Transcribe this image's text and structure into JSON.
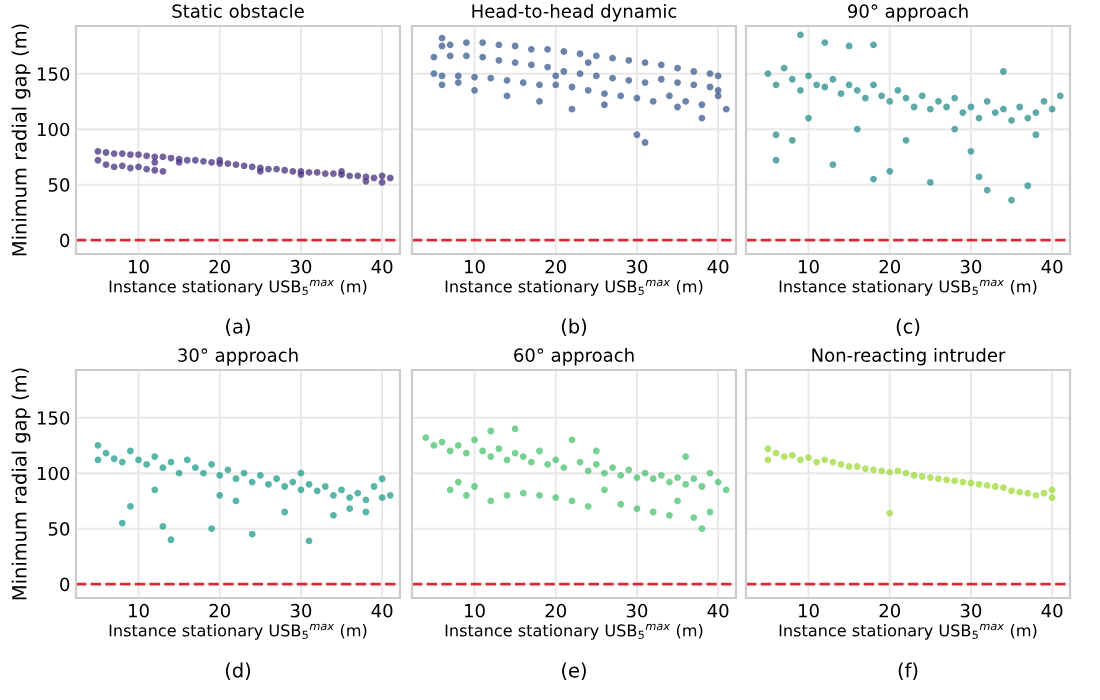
{
  "chart_data": [
    {
      "type": "scatter",
      "title": "Static obstacle",
      "xlabel": "Instance stationary USB$_{5}$$^{max}$ (m)",
      "ylabel": "Minimum radial gap (m)",
      "color": "#46307e",
      "marker": "circle",
      "grid": true,
      "xlim": [
        2.3,
        42.2
      ],
      "ylim": [
        -12.5,
        193
      ],
      "xticks": [
        10,
        20,
        30,
        40
      ],
      "yticks": [
        0,
        50,
        100,
        150
      ],
      "ref_lines": [
        {
          "axis": "y",
          "value": 0,
          "color": "#d62a3a",
          "line_style": "dashed"
        }
      ],
      "annotations": [
        "(a)"
      ],
      "x": [
        5,
        6,
        7,
        8,
        9,
        10,
        11,
        12,
        13,
        14,
        15,
        16,
        17,
        18,
        19,
        20,
        21,
        22,
        23,
        24,
        25,
        26,
        27,
        28,
        29,
        30,
        31,
        32,
        33,
        34,
        35,
        36,
        37,
        38,
        39,
        40,
        41,
        5,
        6,
        7,
        8,
        9,
        10,
        11,
        12,
        13,
        15,
        20,
        25,
        30,
        35,
        38,
        40,
        12
      ],
      "values": [
        80,
        79,
        78,
        78,
        77,
        77,
        76,
        75,
        75,
        74,
        73,
        72,
        72,
        71,
        70,
        69,
        69,
        68,
        67,
        66,
        65,
        64,
        64,
        63,
        62,
        62,
        61,
        61,
        60,
        60,
        59,
        58,
        58,
        57,
        56,
        58,
        56,
        72,
        68,
        66,
        67,
        65,
        66,
        64,
        63,
        62,
        70,
        72,
        62,
        59,
        62,
        53,
        52,
        70
      ]
    },
    {
      "type": "scatter",
      "title": "Head-to-head dynamic",
      "xlabel": "Instance stationary USB$_{5}$$^{max}$ (m)",
      "color": "#3b5a8f",
      "marker": "circle",
      "grid": true,
      "tick_labels": "x",
      "xlim": [
        2.3,
        42.2
      ],
      "ylim": [
        -12.5,
        193
      ],
      "xticks": [
        10,
        20,
        30,
        40
      ],
      "yticks": [
        0,
        50,
        100,
        150
      ],
      "ref_lines": [
        {
          "axis": "y",
          "value": 0,
          "color": "#d62a3a",
          "line_style": "dashed"
        }
      ],
      "annotations": [
        "(b)"
      ],
      "x": [
        5,
        6,
        7,
        9,
        11,
        13,
        15,
        17,
        19,
        21,
        23,
        25,
        27,
        29,
        31,
        33,
        35,
        37,
        39,
        40,
        5,
        7,
        9,
        11,
        13,
        15,
        17,
        19,
        21,
        23,
        25,
        27,
        29,
        31,
        33,
        35,
        37,
        39,
        40,
        6,
        8,
        10,
        12,
        14,
        16,
        18,
        20,
        22,
        24,
        26,
        28,
        30,
        32,
        34,
        36,
        38,
        40,
        41,
        6,
        8,
        10,
        14,
        18,
        22,
        26,
        30,
        31,
        35,
        38,
        6,
        20,
        24
      ],
      "values": [
        165,
        175,
        176,
        178,
        178,
        176,
        175,
        172,
        172,
        170,
        168,
        166,
        164,
        162,
        160,
        158,
        155,
        152,
        150,
        148,
        150,
        166,
        166,
        165,
        162,
        160,
        158,
        156,
        152,
        150,
        148,
        146,
        144,
        142,
        145,
        142,
        140,
        138,
        135,
        148,
        148,
        147,
        146,
        144,
        142,
        140,
        140,
        138,
        135,
        132,
        130,
        128,
        125,
        130,
        125,
        122,
        130,
        118,
        140,
        142,
        135,
        130,
        125,
        118,
        122,
        95,
        88,
        120,
        110,
        182,
        148,
        160
      ]
    },
    {
      "type": "scatter",
      "title": "90° approach",
      "xlabel": "Instance stationary USB$_{5}$$^{max}$ (m)",
      "color": "#2a8c8c",
      "marker": "circle",
      "grid": true,
      "tick_labels": "x",
      "xlim": [
        2.3,
        42.2
      ],
      "ylim": [
        -12.5,
        193
      ],
      "xticks": [
        10,
        20,
        30,
        40
      ],
      "yticks": [
        0,
        50,
        100,
        150
      ],
      "ref_lines": [
        {
          "axis": "y",
          "value": 0,
          "color": "#d62a3a",
          "line_style": "dashed"
        }
      ],
      "annotations": [
        "(c)"
      ],
      "x": [
        5,
        6,
        7,
        8,
        9,
        10,
        11,
        12,
        13,
        14,
        15,
        16,
        17,
        18,
        19,
        20,
        21,
        22,
        23,
        24,
        25,
        26,
        27,
        28,
        29,
        30,
        31,
        32,
        33,
        34,
        35,
        36,
        37,
        38,
        39,
        40,
        41,
        9,
        12,
        15,
        18,
        6,
        8,
        6,
        13,
        18,
        20,
        25,
        31,
        32,
        35,
        37,
        34,
        28,
        22,
        10,
        16,
        30,
        38
      ],
      "values": [
        150,
        140,
        155,
        145,
        135,
        148,
        140,
        138,
        145,
        132,
        140,
        135,
        128,
        140,
        130,
        125,
        135,
        128,
        120,
        130,
        118,
        125,
        120,
        128,
        115,
        120,
        110,
        125,
        115,
        118,
        108,
        120,
        110,
        115,
        125,
        118,
        130,
        185,
        178,
        175,
        176,
        95,
        90,
        72,
        68,
        55,
        62,
        52,
        57,
        45,
        36,
        49,
        152,
        100,
        90,
        110,
        100,
        80,
        95
      ]
    },
    {
      "type": "scatter",
      "title": "30° approach",
      "xlabel": "Instance stationary USB$_{5}$$^{max}$ (m)",
      "ylabel": "Minimum radial gap (m)",
      "color": "#1f9e89",
      "marker": "circle",
      "grid": true,
      "xlim": [
        2.3,
        42.2
      ],
      "ylim": [
        -12.5,
        193
      ],
      "xticks": [
        10,
        20,
        30,
        40
      ],
      "yticks": [
        0,
        50,
        100,
        150
      ],
      "ref_lines": [
        {
          "axis": "y",
          "value": 0,
          "color": "#d62a3a",
          "line_style": "dashed"
        }
      ],
      "annotations": [
        "(d)"
      ],
      "x": [
        5,
        5,
        6,
        7,
        8,
        9,
        10,
        11,
        12,
        13,
        14,
        15,
        16,
        17,
        18,
        19,
        20,
        21,
        22,
        23,
        24,
        25,
        26,
        27,
        28,
        29,
        30,
        31,
        32,
        33,
        34,
        35,
        36,
        37,
        38,
        39,
        40,
        41,
        8,
        9,
        13,
        14,
        12,
        19,
        20,
        24,
        22,
        28,
        31,
        34,
        36,
        38,
        40,
        30
      ],
      "values": [
        125,
        112,
        118,
        113,
        110,
        120,
        112,
        108,
        115,
        105,
        110,
        100,
        112,
        105,
        100,
        108,
        98,
        103,
        95,
        100,
        92,
        98,
        90,
        95,
        88,
        92,
        85,
        90,
        84,
        88,
        80,
        85,
        78,
        82,
        76,
        88,
        78,
        80,
        55,
        70,
        52,
        40,
        85,
        50,
        80,
        45,
        75,
        65,
        39,
        62,
        68,
        65,
        95,
        100
      ]
    },
    {
      "type": "scatter",
      "title": "60° approach",
      "xlabel": "Instance stationary USB$_{5}$$^{max}$ (m)",
      "color": "#48c16e",
      "marker": "circle",
      "grid": true,
      "tick_labels": "x",
      "xlim": [
        2.3,
        42.2
      ],
      "ylim": [
        -12.5,
        193
      ],
      "xticks": [
        10,
        20,
        30,
        40
      ],
      "yticks": [
        0,
        50,
        100,
        150
      ],
      "ref_lines": [
        {
          "axis": "y",
          "value": 0,
          "color": "#d62a3a",
          "line_style": "dashed"
        }
      ],
      "annotations": [
        "(e)"
      ],
      "x": [
        4,
        5,
        6,
        7,
        8,
        9,
        10,
        11,
        12,
        13,
        14,
        15,
        16,
        17,
        18,
        19,
        20,
        21,
        22,
        23,
        24,
        25,
        26,
        27,
        28,
        29,
        30,
        31,
        32,
        33,
        34,
        35,
        36,
        37,
        38,
        39,
        40,
        41,
        7,
        8,
        9,
        10,
        12,
        14,
        16,
        18,
        20,
        22,
        24,
        26,
        28,
        30,
        32,
        34,
        35,
        37,
        38,
        39,
        15,
        12,
        25,
        36
      ],
      "values": [
        132,
        125,
        128,
        120,
        125,
        118,
        130,
        120,
        115,
        122,
        112,
        118,
        115,
        110,
        120,
        108,
        112,
        105,
        130,
        110,
        102,
        108,
        100,
        105,
        98,
        103,
        96,
        100,
        95,
        98,
        92,
        96,
        90,
        95,
        88,
        100,
        92,
        85,
        85,
        92,
        80,
        88,
        75,
        80,
        82,
        80,
        78,
        75,
        70,
        85,
        72,
        68,
        65,
        62,
        75,
        60,
        50,
        65,
        140,
        138,
        120,
        115
      ]
    },
    {
      "type": "scatter",
      "title": "Non-reacting intruder",
      "xlabel": "Instance stationary USB$_{5}$$^{max}$ (m)",
      "color": "#9fda3a",
      "marker": "circle",
      "grid": true,
      "tick_labels": "x",
      "xlim": [
        2.3,
        42.2
      ],
      "ylim": [
        -12.5,
        193
      ],
      "xticks": [
        10,
        20,
        30,
        40
      ],
      "yticks": [
        0,
        50,
        100,
        150
      ],
      "ref_lines": [
        {
          "axis": "y",
          "value": 0,
          "color": "#d62a3a",
          "line_style": "dashed"
        }
      ],
      "annotations": [
        "(f)"
      ],
      "x": [
        5,
        5,
        6,
        7,
        8,
        9,
        10,
        11,
        12,
        13,
        14,
        15,
        16,
        17,
        18,
        19,
        20,
        20,
        21,
        22,
        23,
        24,
        25,
        26,
        27,
        28,
        29,
        30,
        31,
        32,
        33,
        34,
        35,
        36,
        37,
        38,
        39,
        40,
        40
      ],
      "values": [
        122,
        112,
        118,
        115,
        116,
        112,
        114,
        110,
        112,
        110,
        108,
        106,
        106,
        104,
        103,
        102,
        101,
        64,
        102,
        100,
        98,
        97,
        96,
        95,
        94,
        93,
        92,
        91,
        90,
        89,
        88,
        87,
        84,
        83,
        82,
        80,
        82,
        78,
        85
      ]
    }
  ]
}
